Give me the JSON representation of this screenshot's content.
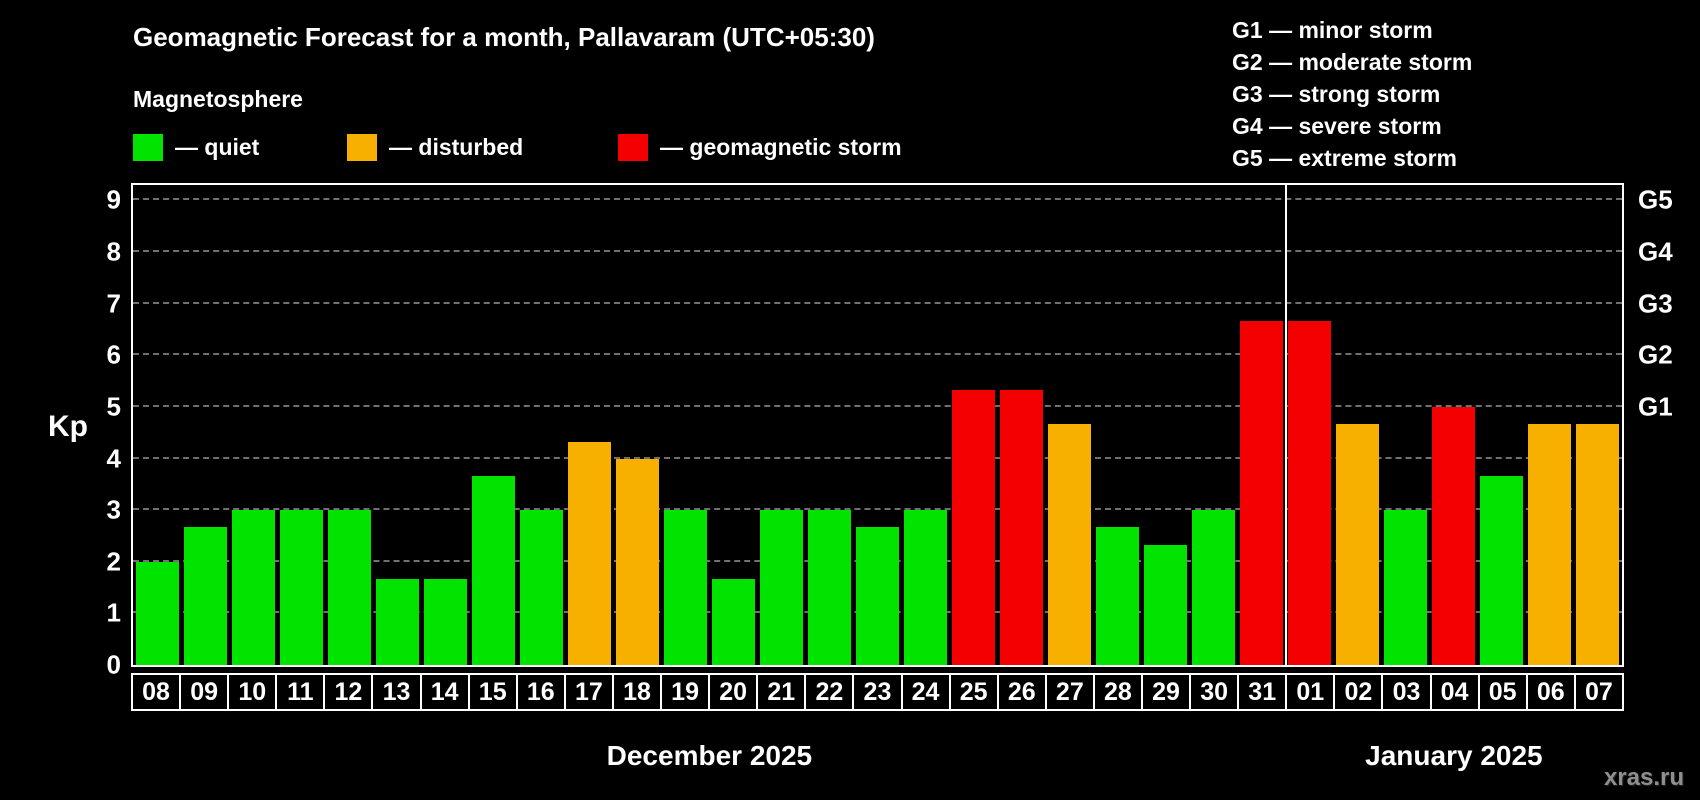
{
  "header": {
    "title": "Geomagnetic Forecast for a month, Pallavaram (UTC+05:30)",
    "subtitle": "Magnetosphere"
  },
  "legend": {
    "items": [
      {
        "key": "quiet",
        "label": "— quiet"
      },
      {
        "key": "disturbed",
        "label": "— disturbed"
      },
      {
        "key": "storm",
        "label": "— geomagnetic storm"
      }
    ]
  },
  "storm_scale": [
    "G1 — minor storm",
    "G2 — moderate storm",
    "G3 — strong storm",
    "G4 — severe storm",
    "G5 — extreme storm"
  ],
  "colors": {
    "quiet": "#00e400",
    "disturbed": "#f8b000",
    "storm": "#f40000",
    "background": "#000000",
    "text": "#ffffff",
    "grid": "#707070"
  },
  "axis": {
    "ylabel": "Kp"
  },
  "chart_data": {
    "type": "bar",
    "title": "Geomagnetic Forecast for a month, Pallavaram (UTC+05:30)",
    "ylabel": "Kp",
    "ylim": [
      0,
      9.3
    ],
    "yticks": [
      0,
      1,
      2,
      3,
      4,
      5,
      6,
      7,
      8,
      9
    ],
    "right_axis_ticks": [
      {
        "label": "G1",
        "value": 5
      },
      {
        "label": "G2",
        "value": 6
      },
      {
        "label": "G3",
        "value": 7
      },
      {
        "label": "G4",
        "value": 8
      },
      {
        "label": "G5",
        "value": 9
      }
    ],
    "categories": [
      "08",
      "09",
      "10",
      "11",
      "12",
      "13",
      "14",
      "15",
      "16",
      "17",
      "18",
      "19",
      "20",
      "21",
      "22",
      "23",
      "24",
      "25",
      "26",
      "27",
      "28",
      "29",
      "30",
      "31",
      "01",
      "02",
      "03",
      "04",
      "05",
      "06",
      "07"
    ],
    "values": [
      2.0,
      2.67,
      3.0,
      3.0,
      3.0,
      1.67,
      1.67,
      3.67,
      3.0,
      4.33,
      4.0,
      3.0,
      1.67,
      3.0,
      3.0,
      2.67,
      3.0,
      5.33,
      5.33,
      4.67,
      2.67,
      2.33,
      3.0,
      6.67,
      6.67,
      4.67,
      3.0,
      5.0,
      3.67,
      4.67,
      4.67
    ],
    "statuses": [
      "quiet",
      "quiet",
      "quiet",
      "quiet",
      "quiet",
      "quiet",
      "quiet",
      "quiet",
      "quiet",
      "disturbed",
      "disturbed",
      "quiet",
      "quiet",
      "quiet",
      "quiet",
      "quiet",
      "quiet",
      "storm",
      "storm",
      "disturbed",
      "quiet",
      "quiet",
      "quiet",
      "storm",
      "storm",
      "disturbed",
      "quiet",
      "storm",
      "quiet",
      "disturbed",
      "disturbed"
    ],
    "month_labels": [
      {
        "label": "December 2025",
        "span": [
          0,
          23
        ]
      },
      {
        "label": "January 2025",
        "span": [
          24,
          30
        ]
      }
    ],
    "grid": "dashed-horizontal",
    "legend_position": "top-left"
  },
  "watermark": "xras.ru"
}
